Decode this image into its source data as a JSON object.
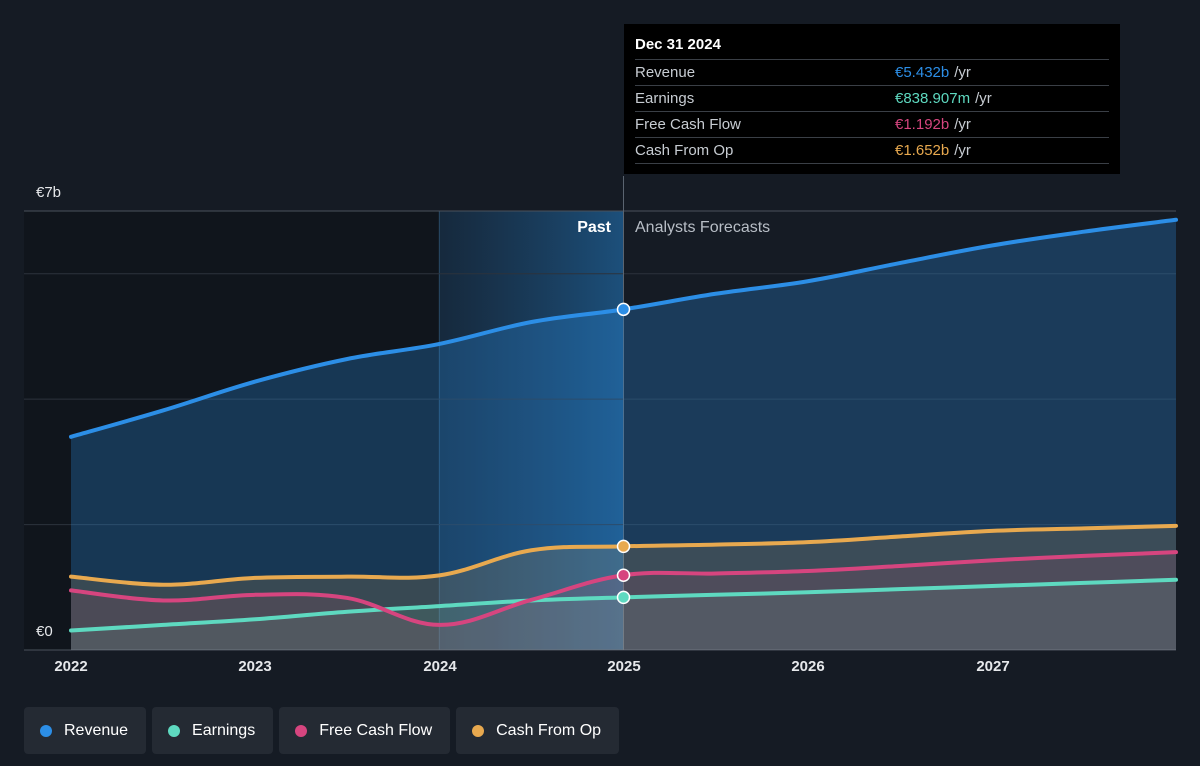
{
  "chart_data": {
    "type": "area",
    "y_axis": {
      "top_label": "€7b",
      "bottom_label": "€0",
      "ylim": [
        0,
        7
      ]
    },
    "x_ticks": [
      "2022",
      "2023",
      "2024",
      "2025",
      "2026",
      "2027"
    ],
    "x_range": [
      2022,
      2028
    ],
    "past_label": "Past",
    "forecast_label": "Analysts Forecasts",
    "divider_x": 2025,
    "highlight_range": [
      2024,
      2025
    ],
    "series": [
      {
        "name": "Revenue",
        "color": "#2c8ee6",
        "points": [
          [
            2022,
            3.4
          ],
          [
            2022.5,
            3.82
          ],
          [
            2023,
            4.28
          ],
          [
            2023.5,
            4.64
          ],
          [
            2024,
            4.88
          ],
          [
            2024.5,
            5.23
          ],
          [
            2025,
            5.432
          ],
          [
            2025.5,
            5.68
          ],
          [
            2026,
            5.88
          ],
          [
            2026.5,
            6.17
          ],
          [
            2027,
            6.45
          ],
          [
            2027.5,
            6.67
          ],
          [
            2028,
            6.86
          ]
        ]
      },
      {
        "name": "Earnings",
        "color": "#5ed9c0",
        "points": [
          [
            2022,
            0.31
          ],
          [
            2022.5,
            0.4
          ],
          [
            2023,
            0.49
          ],
          [
            2023.5,
            0.61
          ],
          [
            2024,
            0.7
          ],
          [
            2024.5,
            0.79
          ],
          [
            2025,
            0.839
          ],
          [
            2025.5,
            0.88
          ],
          [
            2026,
            0.92
          ],
          [
            2026.5,
            0.97
          ],
          [
            2027,
            1.02
          ],
          [
            2027.5,
            1.07
          ],
          [
            2028,
            1.12
          ]
        ]
      },
      {
        "name": "Free Cash Flow",
        "color": "#d6457f",
        "points": [
          [
            2022,
            0.95
          ],
          [
            2022.5,
            0.79
          ],
          [
            2023,
            0.88
          ],
          [
            2023.5,
            0.83
          ],
          [
            2024,
            0.4
          ],
          [
            2024.5,
            0.8
          ],
          [
            2025,
            1.192
          ],
          [
            2025.5,
            1.22
          ],
          [
            2026,
            1.26
          ],
          [
            2026.5,
            1.34
          ],
          [
            2027,
            1.43
          ],
          [
            2027.5,
            1.5
          ],
          [
            2028,
            1.56
          ]
        ]
      },
      {
        "name": "Cash From Op",
        "color": "#e8a94f",
        "points": [
          [
            2022,
            1.17
          ],
          [
            2022.5,
            1.04
          ],
          [
            2023,
            1.15
          ],
          [
            2023.5,
            1.17
          ],
          [
            2024,
            1.19
          ],
          [
            2024.5,
            1.59
          ],
          [
            2025,
            1.652
          ],
          [
            2025.5,
            1.68
          ],
          [
            2026,
            1.72
          ],
          [
            2026.5,
            1.81
          ],
          [
            2027,
            1.9
          ],
          [
            2027.5,
            1.94
          ],
          [
            2028,
            1.98
          ]
        ]
      }
    ]
  },
  "tooltip": {
    "date": "Dec 31 2024",
    "unit": "/yr",
    "rows": [
      {
        "name": "Revenue",
        "value": "€5.432b",
        "color": "#2c8ee6"
      },
      {
        "name": "Earnings",
        "value": "€838.907m",
        "color": "#5ed9c0"
      },
      {
        "name": "Free Cash Flow",
        "value": "€1.192b",
        "color": "#d6457f"
      },
      {
        "name": "Cash From Op",
        "value": "€1.652b",
        "color": "#e8a94f"
      }
    ]
  },
  "legend": [
    {
      "label": "Revenue",
      "color": "#2c8ee6"
    },
    {
      "label": "Earnings",
      "color": "#5ed9c0"
    },
    {
      "label": "Free Cash Flow",
      "color": "#d6457f"
    },
    {
      "label": "Cash From Op",
      "color": "#e8a94f"
    }
  ]
}
